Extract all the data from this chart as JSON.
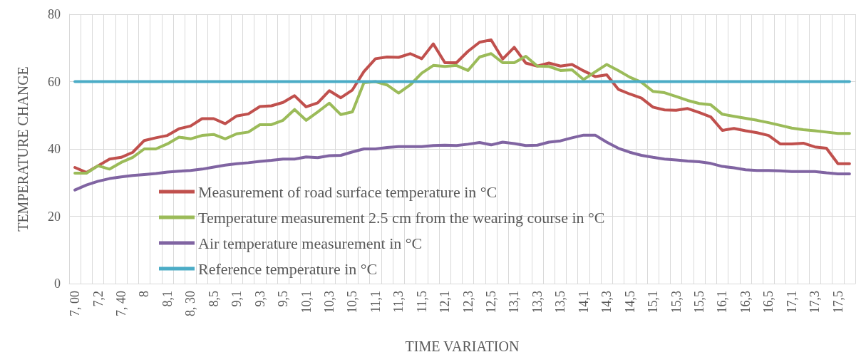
{
  "chart_data": {
    "type": "line",
    "xlabel": "TIME VARIATION",
    "ylabel": "TEMPERATURE CHANGE",
    "categories": [
      "7, 00",
      null,
      "7,2",
      null,
      "7, 40",
      null,
      "8",
      null,
      "8,1",
      null,
      "8, 30",
      null,
      "8,5",
      null,
      "9,1",
      null,
      "9,3",
      null,
      "9,5",
      null,
      "10,1",
      null,
      "10,3",
      null,
      "10,5",
      null,
      "11,1",
      null,
      "11,3",
      null,
      "11,5",
      null,
      "12,1",
      null,
      "12,3",
      null,
      "12,5",
      null,
      "13,1",
      null,
      "13,3",
      null,
      "13,5",
      null,
      "14,1",
      null,
      "14,3",
      null,
      "14,5",
      null,
      "15,1",
      null,
      "15,3",
      null,
      "15,5",
      null,
      "16,1",
      null,
      "16,3",
      null,
      "16,5",
      null,
      "17,1",
      null,
      "17,3",
      null,
      "17,5",
      null
    ],
    "series": [
      {
        "name": "Measurement of road surface temperature in °C",
        "color": "#c0504d",
        "values": [
          34.5,
          33,
          35,
          37,
          37.5,
          39,
          42.5,
          43.3,
          44,
          46,
          46.8,
          49,
          49,
          47.5,
          49.8,
          50.4,
          52.6,
          52.8,
          53.8,
          55.8,
          52.5,
          53.7,
          57.3,
          55.2,
          57.5,
          63,
          66.8,
          67.3,
          67.2,
          68.3,
          66.8,
          71.2,
          65.6,
          65.6,
          69,
          71.7,
          72.4,
          66.7,
          70.2,
          65.5,
          64.6,
          65.5,
          64.6,
          65.1,
          63.2,
          61.5,
          62,
          57.7,
          56.3,
          55.1,
          52.4,
          51.6,
          51.5,
          52,
          50.8,
          49.5,
          45.5,
          46.1,
          45.4,
          44.8,
          44,
          41.5,
          41.5,
          41.7,
          40.6,
          40.2,
          35.6,
          35.6
        ]
      },
      {
        "name": "Temperature measurement 2.5 cm from the wearing course in °C",
        "color": "#9bbb59",
        "values": [
          32.8,
          32.8,
          35,
          34,
          36,
          37.5,
          40,
          40,
          41.5,
          43.5,
          43,
          44,
          44.3,
          43,
          44.5,
          45,
          47.2,
          47.2,
          48.5,
          51.7,
          48.5,
          51,
          53.6,
          50.2,
          51,
          59.7,
          60,
          59,
          56.6,
          59,
          62.5,
          64.8,
          64.5,
          64.8,
          63.3,
          67.3,
          68.3,
          65.6,
          65.6,
          67.5,
          64.6,
          64.5,
          63.3,
          63.5,
          60.6,
          62.9,
          65.1,
          63.3,
          61.3,
          59.8,
          57.1,
          56.7,
          55.6,
          54.4,
          53.5,
          53.1,
          50.3,
          49.7,
          49.1,
          48.5,
          47.8,
          47,
          46.2,
          45.7,
          45.4,
          45,
          44.6,
          44.6
        ]
      },
      {
        "name": "Air temperature measurement in °C",
        "color": "#8064a2",
        "values": [
          27.8,
          29.3,
          30.4,
          31.2,
          31.7,
          32.1,
          32.4,
          32.7,
          33.1,
          33.4,
          33.6,
          34,
          34.6,
          35.2,
          35.6,
          35.9,
          36.3,
          36.6,
          37,
          37,
          37.6,
          37.4,
          38,
          38.1,
          39.1,
          40,
          40,
          40.4,
          40.7,
          40.7,
          40.7,
          41,
          41.1,
          41,
          41.4,
          41.9,
          41.2,
          42,
          41.6,
          41,
          41.1,
          42,
          42.4,
          43.3,
          44.1,
          44.1,
          42,
          40.2,
          39,
          38.1,
          37.5,
          37,
          36.7,
          36.4,
          36.2,
          35.7,
          34.8,
          34.4,
          33.8,
          33.6,
          33.6,
          33.5,
          33.3,
          33.3,
          33.3,
          32.9,
          32.6,
          32.6
        ]
      },
      {
        "name": "Reference temperature in °C",
        "color": "#4bacc6",
        "values": [
          60,
          60,
          60,
          60,
          60,
          60,
          60,
          60,
          60,
          60,
          60,
          60,
          60,
          60,
          60,
          60,
          60,
          60,
          60,
          60,
          60,
          60,
          60,
          60,
          60,
          60,
          60,
          60,
          60,
          60,
          60,
          60,
          60,
          60,
          60,
          60,
          60,
          60,
          60,
          60,
          60,
          60,
          60,
          60,
          60,
          60,
          60,
          60,
          60,
          60,
          60,
          60,
          60,
          60,
          60,
          60,
          60,
          60,
          60,
          60,
          60,
          60,
          60,
          60,
          60,
          60,
          60,
          60
        ]
      }
    ],
    "ylim": [
      0,
      80
    ],
    "yticks": [
      0,
      20,
      40,
      60,
      80
    ],
    "grid": true,
    "legend": "bottom left",
    "marker": "none",
    "line_style": "solid"
  }
}
